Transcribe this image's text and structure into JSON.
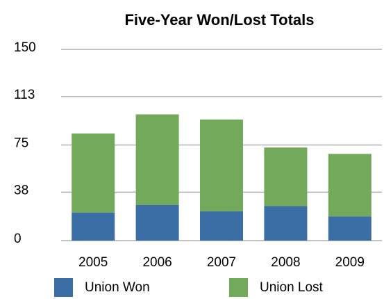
{
  "chart_data": {
    "type": "stacked_bar",
    "title": "Five-Year Won/Lost Totals",
    "categories": [
      "2005",
      "2006",
      "2007",
      "2008",
      "2009"
    ],
    "series": [
      {
        "name": "Union Won",
        "color": "#3a6ea5",
        "values": [
          22,
          28,
          23,
          27,
          19
        ]
      },
      {
        "name": "Union Lost",
        "color": "#72a95a",
        "values": [
          62,
          71,
          72,
          46,
          49
        ]
      }
    ],
    "ylim": [
      0,
      150
    ],
    "yticks": [
      0,
      38,
      75,
      113,
      150
    ],
    "grid": true,
    "legend": "bottom"
  }
}
